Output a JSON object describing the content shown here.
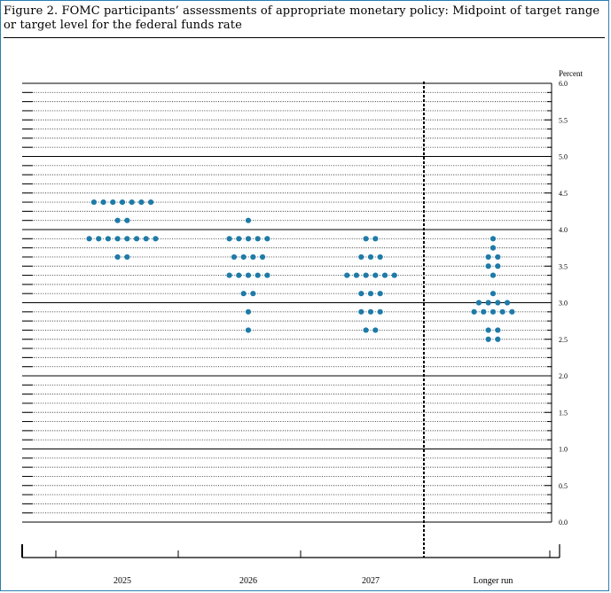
{
  "title": "Figure 2.  FOMC participants’ assessments of appropriate monetary policy:  Midpoint of target range or target level for the federal funds rate",
  "chart_data": {
    "type": "scatter",
    "title": "Figure 2.  FOMC participants’ assessments of appropriate monetary policy:  Midpoint of target range or target level for the federal funds rate",
    "ylabel": "Percent",
    "ylim": [
      0,
      6.0
    ],
    "y_ticks": [
      "0.0",
      "0.5",
      "1.0",
      "1.5",
      "2.0",
      "2.5",
      "3.0",
      "3.5",
      "4.0",
      "4.5",
      "5.0",
      "5.5",
      "6.0"
    ],
    "categories": [
      "2025",
      "2026",
      "2027",
      "Longer run"
    ],
    "grid": true,
    "separator_before": "Longer run",
    "dot_color": "#1e7ba8",
    "dots": [
      {
        "category": "2025",
        "rates": [
          {
            "y": 4.375,
            "count": 7
          },
          {
            "y": 4.125,
            "count": 2
          },
          {
            "y": 3.875,
            "count": 8
          },
          {
            "y": 3.625,
            "count": 2
          }
        ]
      },
      {
        "category": "2026",
        "rates": [
          {
            "y": 4.125,
            "count": 1
          },
          {
            "y": 3.875,
            "count": 5
          },
          {
            "y": 3.625,
            "count": 4
          },
          {
            "y": 3.375,
            "count": 5
          },
          {
            "y": 3.125,
            "count": 2
          },
          {
            "y": 2.875,
            "count": 1
          },
          {
            "y": 2.625,
            "count": 1
          }
        ]
      },
      {
        "category": "2027",
        "rates": [
          {
            "y": 3.875,
            "count": 2
          },
          {
            "y": 3.625,
            "count": 3
          },
          {
            "y": 3.375,
            "count": 6
          },
          {
            "y": 3.125,
            "count": 3
          },
          {
            "y": 2.875,
            "count": 3
          },
          {
            "y": 2.625,
            "count": 2
          }
        ]
      },
      {
        "category": "Longer run",
        "rates": [
          {
            "y": 3.875,
            "count": 1
          },
          {
            "y": 3.75,
            "count": 1
          },
          {
            "y": 3.625,
            "count": 2
          },
          {
            "y": 3.5,
            "count": 2
          },
          {
            "y": 3.375,
            "count": 1
          },
          {
            "y": 3.125,
            "count": 1
          },
          {
            "y": 3.0,
            "count": 4
          },
          {
            "y": 2.875,
            "count": 5
          },
          {
            "y": 2.625,
            "count": 2
          },
          {
            "y": 2.5,
            "count": 2
          }
        ]
      }
    ]
  }
}
